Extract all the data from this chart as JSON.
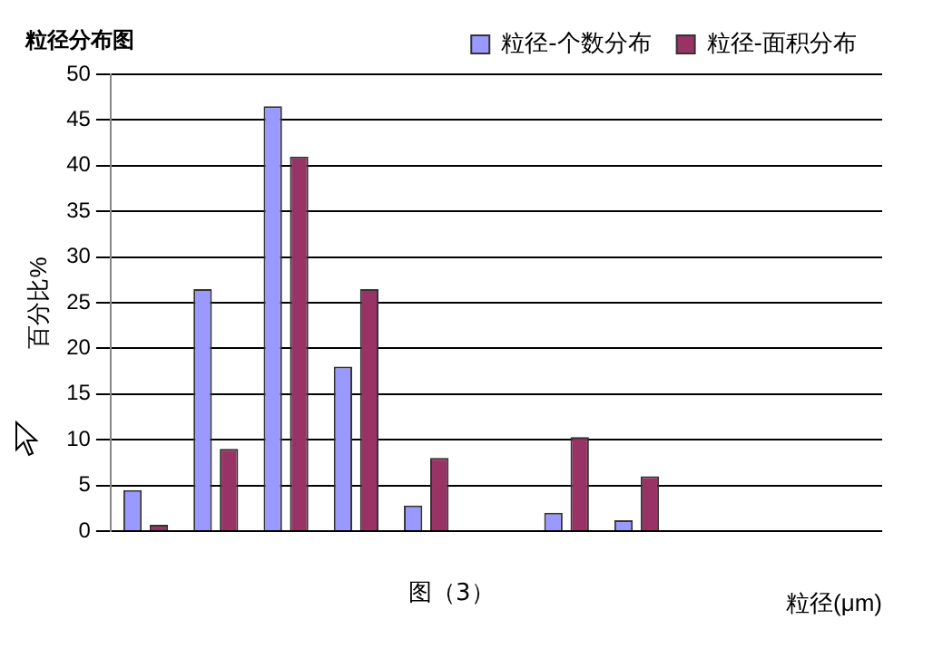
{
  "chart_data": {
    "type": "bar",
    "title": "粒径分布图",
    "ylabel": "百分比%",
    "xlabel": "粒径(μm)",
    "annotations": [
      "图（3）"
    ],
    "categories": [
      null,
      null,
      null,
      null,
      null,
      null,
      null,
      null,
      null,
      null,
      null
    ],
    "series": [
      {
        "name": "粒径-个数分布",
        "color": "#9999ff",
        "values": [
          4.5,
          26.5,
          46.5,
          18,
          2.8,
          0,
          2,
          1.2,
          0,
          0,
          0
        ]
      },
      {
        "name": "粒径-面积分布",
        "color": "#993366",
        "values": [
          0.7,
          9,
          41,
          26.5,
          8,
          0,
          10.3,
          6,
          0,
          0,
          0
        ]
      }
    ],
    "ylim": [
      0,
      50
    ],
    "yticks": [
      0,
      5,
      10,
      15,
      20,
      25,
      30,
      35,
      40,
      45,
      50
    ],
    "grid": "y",
    "legend": "top right"
  }
}
